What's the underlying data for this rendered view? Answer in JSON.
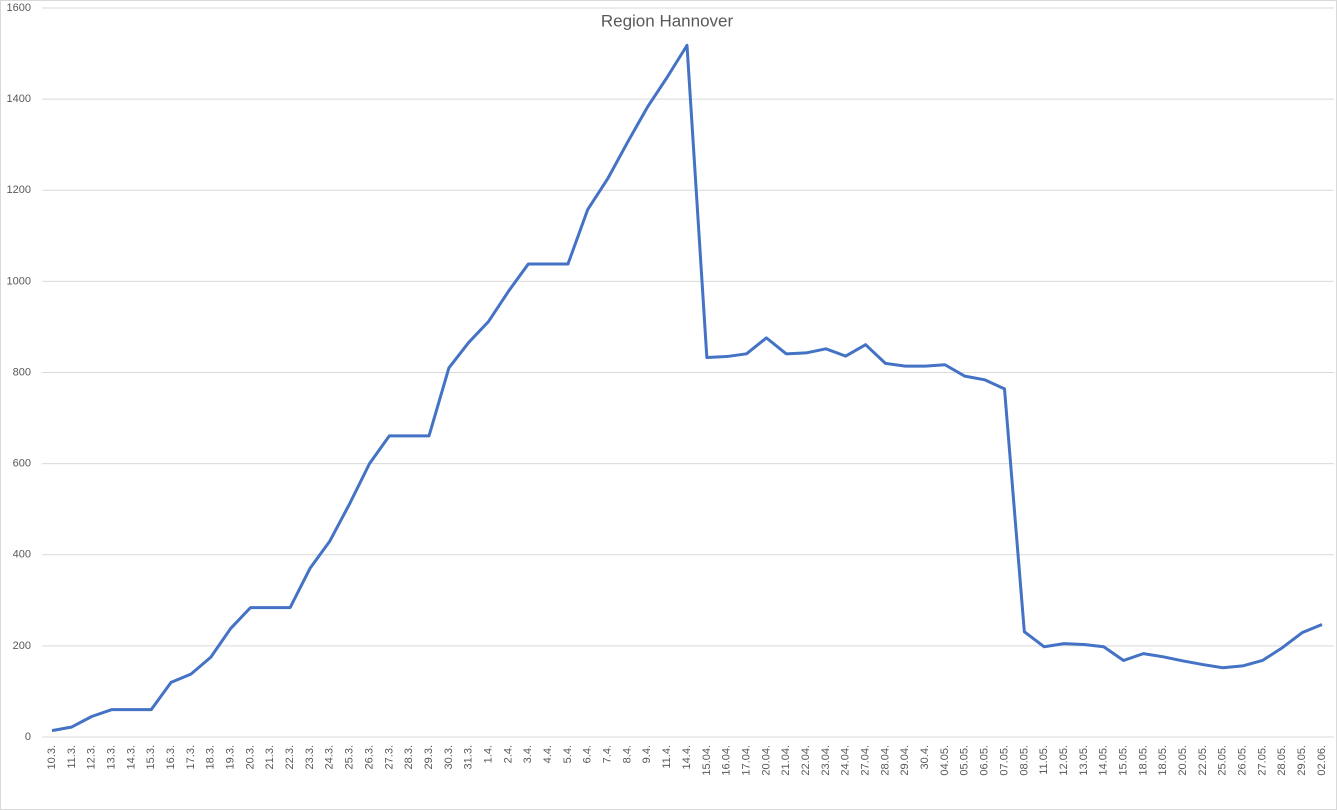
{
  "chart_data": {
    "type": "line",
    "title": "Region Hannover",
    "categories": [
      "10.3.",
      "11.3.",
      "12.3.",
      "13.3.",
      "14.3.",
      "15.3.",
      "16.3.",
      "17.3.",
      "18.3.",
      "19.3.",
      "20.3.",
      "21.3.",
      "22.3.",
      "23.3.",
      "24.3.",
      "25.3.",
      "26.3.",
      "27.3.",
      "28.3.",
      "29.3.",
      "30.3.",
      "31.3.",
      "1.4.",
      "2.4.",
      "3.4.",
      "4.4.",
      "5.4.",
      "6.4.",
      "7.4.",
      "8.4.",
      "9.4.",
      "11.4.",
      "14.4.",
      "15.04.",
      "16.04.",
      "17.04.",
      "20.04.",
      "21.04.",
      "22.04.",
      "23.04.",
      "24.04.",
      "27.04.",
      "28.04.",
      "29.04.",
      "30.4.",
      "04.05.",
      "05.05.",
      "06.05.",
      "07.05.",
      "08.05.",
      "11.05.",
      "12.05.",
      "13.05.",
      "14.05.",
      "15.05.",
      "18.05.",
      "18.05.",
      "20.05.",
      "22.05.",
      "25.05.",
      "26.05.",
      "27.05.",
      "28.05.",
      "29.05.",
      "02.06."
    ],
    "values": [
      14,
      22,
      45,
      60,
      60,
      60,
      120,
      138,
      175,
      238,
      284,
      284,
      284,
      370,
      430,
      512,
      600,
      661,
      661,
      661,
      810,
      866,
      912,
      978,
      1038,
      1038,
      1038,
      1158,
      1225,
      1305,
      1382,
      1448,
      1518,
      833,
      835,
      841,
      876,
      841,
      843,
      852,
      836,
      861,
      820,
      814,
      814,
      817,
      792,
      784,
      764,
      231,
      198,
      205,
      203,
      198,
      168,
      183,
      176,
      167,
      159,
      152,
      156,
      168,
      196,
      229,
      247
    ],
    "color": "#4472c4",
    "ylim": [
      0,
      1600
    ],
    "yticks": [
      0,
      200,
      400,
      600,
      800,
      1000,
      1200,
      1400,
      1600
    ],
    "grid": true
  }
}
